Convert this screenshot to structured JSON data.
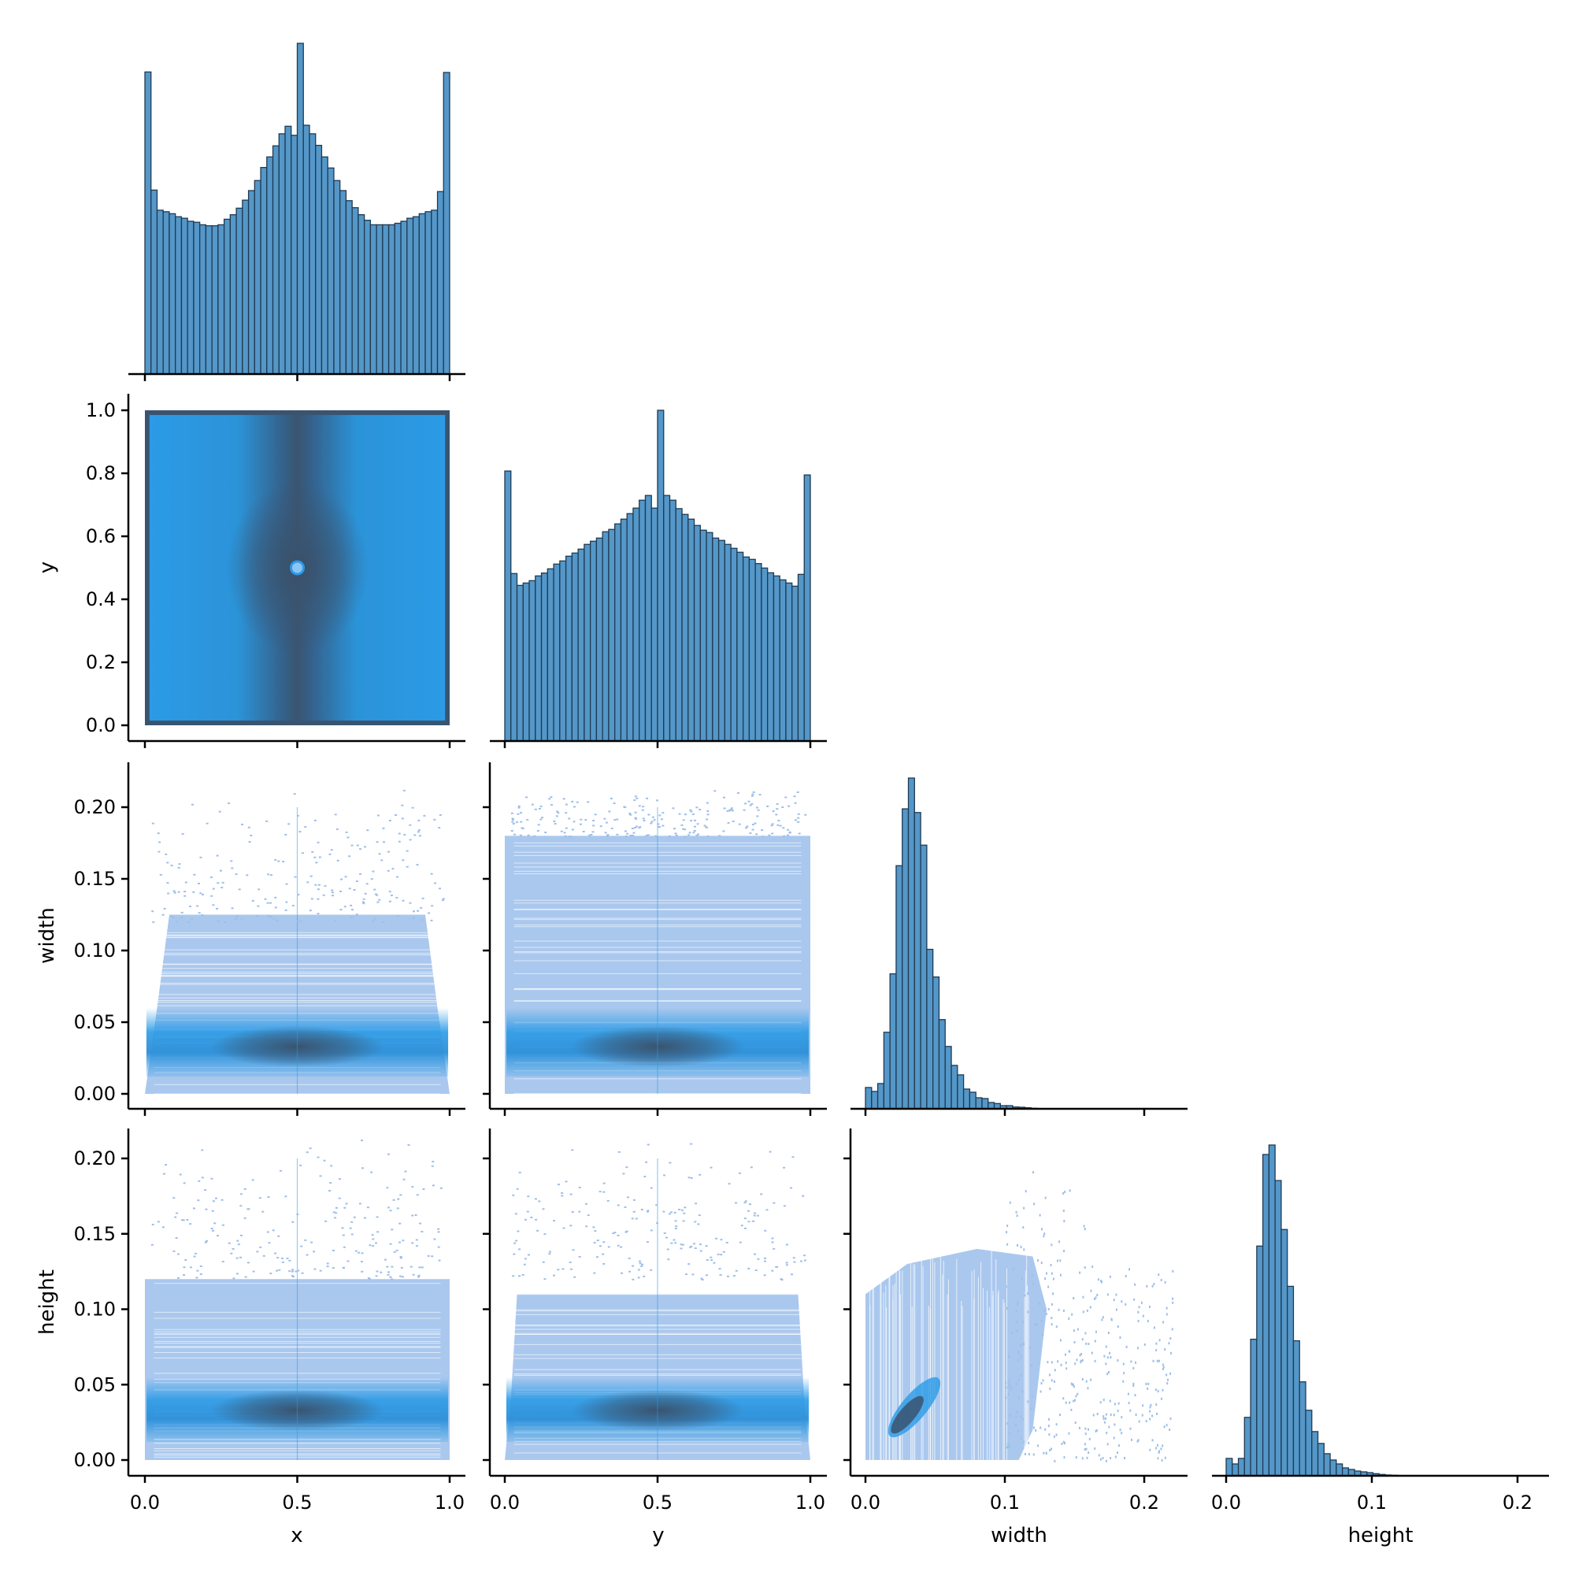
{
  "chart_data": {
    "type": "pairplot",
    "corner": true,
    "variables": [
      "x",
      "y",
      "width",
      "height"
    ],
    "axis_labels": {
      "x": "x",
      "y": "y",
      "width": "width",
      "height": "height"
    },
    "ticks": {
      "x": {
        "values": [
          0.0,
          0.5,
          1.0
        ],
        "labels": [
          "0.0",
          "0.5",
          "1.0"
        ]
      },
      "y": {
        "values": [
          0.0,
          0.5,
          1.0
        ],
        "labels": [
          "0.0",
          "0.5",
          "1.0"
        ]
      },
      "y_vertical": {
        "values": [
          0.0,
          0.2,
          0.4,
          0.6,
          0.8,
          1.0
        ],
        "labels": [
          "0.0",
          "0.2",
          "0.4",
          "0.6",
          "0.8",
          "1.0"
        ]
      },
      "width": {
        "values": [
          0.0,
          0.1,
          0.2
        ],
        "labels": [
          "0.0",
          "0.1",
          "0.2"
        ]
      },
      "height": {
        "values": [
          0.0,
          0.1,
          0.2
        ],
        "labels": [
          "0.0",
          "0.1",
          "0.2"
        ]
      },
      "width_vertical": {
        "values": [
          0.0,
          0.05,
          0.1,
          0.15,
          0.2
        ],
        "labels": [
          "0.00",
          "0.05",
          "0.10",
          "0.15",
          "0.20"
        ]
      },
      "height_vertical": {
        "values": [
          0.0,
          0.05,
          0.1,
          0.15,
          0.2
        ],
        "labels": [
          "0.00",
          "0.05",
          "0.10",
          "0.15",
          "0.20"
        ]
      }
    },
    "histograms": [
      {
        "variable": "x",
        "bin_start": 0.0,
        "bin_width": 0.02,
        "relative_counts": [
          601,
          366,
          326,
          323,
          319,
          313,
          310,
          304,
          302,
          297,
          295,
          295,
          297,
          308,
          317,
          330,
          346,
          365,
          385,
          411,
          432,
          454,
          478,
          493,
          475,
          658,
          495,
          478,
          455,
          432,
          410,
          385,
          365,
          345,
          331,
          317,
          306,
          297,
          297,
          297,
          297,
          300,
          304,
          310,
          313,
          319,
          323,
          326,
          363,
          600
        ]
      },
      {
        "variable": "y",
        "bin_start": 0.0,
        "bin_width": 0.02,
        "relative_counts": [
          1027,
          637,
          592,
          601,
          610,
          628,
          639,
          655,
          673,
          685,
          703,
          715,
          730,
          748,
          760,
          772,
          796,
          805,
          826,
          844,
          865,
          886,
          916,
          934,
          886,
          1258,
          934,
          916,
          884,
          862,
          844,
          820,
          802,
          793,
          772,
          763,
          748,
          733,
          718,
          700,
          691,
          675,
          658,
          640,
          628,
          613,
          601,
          589,
          634,
          1012
        ]
      },
      {
        "variable": "width",
        "bin_start": 0.0,
        "bin_width": 0.0044,
        "relative_counts": [
          81,
          66,
          96,
          291,
          513,
          924,
          1140,
          1257,
          1126,
          1002,
          606,
          501,
          339,
          237,
          165,
          129,
          75,
          63,
          42,
          39,
          24,
          20,
          12,
          12,
          7,
          6,
          4,
          2,
          1,
          1,
          1,
          0,
          0,
          0,
          0,
          0,
          0,
          0,
          0,
          0,
          0,
          0,
          0,
          0,
          0,
          0,
          0,
          0,
          0,
          1
        ]
      },
      {
        "variable": "height",
        "bin_start": 0.0,
        "bin_width": 0.0042,
        "relative_counts": [
          66,
          45,
          66,
          222,
          519,
          873,
          1221,
          1257,
          1122,
          936,
          720,
          513,
          357,
          249,
          168,
          123,
          84,
          60,
          45,
          30,
          24,
          18,
          15,
          12,
          8,
          5,
          3,
          2,
          1,
          1,
          0,
          0,
          0,
          0,
          0,
          0,
          0,
          0,
          0,
          0,
          0,
          0,
          0,
          0,
          0,
          0,
          0,
          0,
          0,
          1
        ]
      }
    ],
    "bivariate_panels": [
      {
        "type": "heatmap",
        "x": "x",
        "y": "y",
        "support_x": [
          0,
          1
        ],
        "support_y": [
          0,
          1
        ],
        "density_peak": [
          0.5,
          0.5
        ]
      },
      {
        "type": "heatmap",
        "x": "x",
        "y": "width",
        "support_x": [
          0,
          1
        ],
        "support_y": [
          0,
          0.22
        ],
        "density_peak": [
          0.5,
          0.035
        ]
      },
      {
        "type": "heatmap",
        "x": "y",
        "y": "width",
        "support_x": [
          0,
          1
        ],
        "support_y": [
          0,
          0.22
        ],
        "density_peak": [
          0.5,
          0.035
        ]
      },
      {
        "type": "heatmap",
        "x": "x",
        "y": "height",
        "support_x": [
          0,
          1
        ],
        "support_y": [
          0,
          0.21
        ],
        "density_peak": [
          0.5,
          0.03
        ]
      },
      {
        "type": "heatmap",
        "x": "y",
        "y": "height",
        "support_x": [
          0,
          1
        ],
        "support_y": [
          0,
          0.21
        ],
        "density_peak": [
          0.5,
          0.03
        ]
      },
      {
        "type": "heatmap",
        "x": "width",
        "y": "height",
        "support_x": [
          0,
          0.22
        ],
        "support_y": [
          0,
          0.21
        ],
        "density_peak": [
          0.03,
          0.03
        ]
      }
    ],
    "colors": {
      "hist_fill": "#5497c8",
      "hist_edge": "#1f3a52",
      "light": "#aac8ee",
      "mid": "#2b9be6",
      "dark": "#3a5470"
    }
  }
}
